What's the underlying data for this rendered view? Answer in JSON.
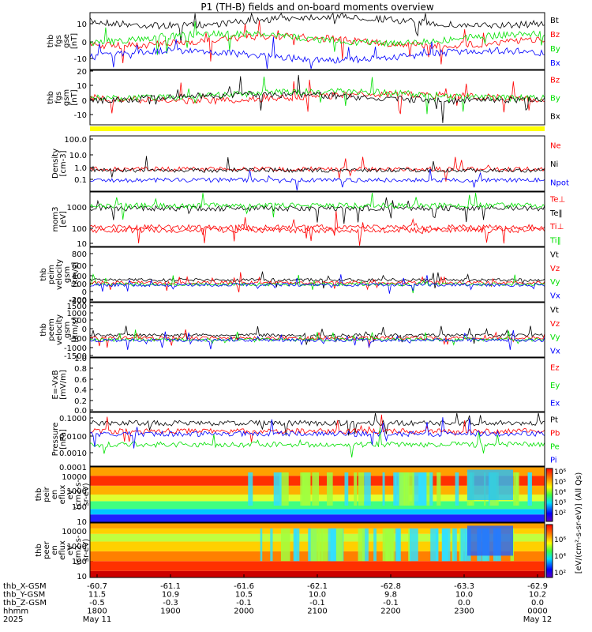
{
  "title": "P1 (TH-B) fields and on-board moments overview",
  "colors": {
    "black": "#000000",
    "red": "#ff0000",
    "green": "#00e000",
    "blue": "#0000ff",
    "yellow": "#ffff00"
  },
  "chart_data": [
    {
      "type": "line",
      "ylabel": [
        "thb",
        "fgs",
        "gse",
        "[nT]"
      ],
      "ylim": [
        -20,
        20
      ],
      "yticks": [
        "10",
        "0",
        "-10"
      ],
      "series": [
        {
          "name": "Bt",
          "color": "black"
        },
        {
          "name": "Bz",
          "color": "red"
        },
        {
          "name": "By",
          "color": "green"
        },
        {
          "name": "Bx",
          "color": "blue"
        }
      ]
    },
    {
      "type": "line",
      "ylabel": [
        "thb",
        "fgs",
        "gsm",
        "[nT]"
      ],
      "ylim": [
        -20,
        20
      ],
      "yticks": [
        "20",
        "10",
        "0",
        "-10"
      ],
      "series": [
        {
          "name": "Bz",
          "color": "red"
        },
        {
          "name": "By",
          "color": "green"
        },
        {
          "name": "Bx",
          "color": "black"
        }
      ]
    },
    {
      "type": "line",
      "ylabel": [
        "Density",
        "[cm-3]"
      ],
      "ylim": [
        0.03,
        150
      ],
      "log": true,
      "yticks": [
        "100.0",
        "10.0",
        "1.0",
        "0.1"
      ],
      "series": [
        {
          "name": "Ne",
          "color": "red"
        },
        {
          "name": "Ni",
          "color": "black"
        },
        {
          "name": "Npot",
          "color": "blue"
        }
      ]
    },
    {
      "type": "line",
      "ylabel": [
        "mom3",
        "[eV]"
      ],
      "ylim": [
        7,
        3000
      ],
      "log": true,
      "yticks": [
        "1000",
        "100",
        "10"
      ],
      "series": [
        {
          "name": "Te⊥",
          "color": "red"
        },
        {
          "name": "Te‖",
          "color": "black"
        },
        {
          "name": "Ti⊥",
          "color": "red"
        },
        {
          "name": "Ti‖",
          "color": "green"
        }
      ]
    },
    {
      "type": "line",
      "ylabel": [
        "thb",
        "peim",
        "velocity",
        "gsm",
        "[km/s]"
      ],
      "ylim": [
        -400,
        900
      ],
      "yticks": [
        "800",
        "600",
        "400",
        "200",
        "0",
        "-200",
        "-400"
      ],
      "series": [
        {
          "name": "Vt",
          "color": "black"
        },
        {
          "name": "Vz",
          "color": "red"
        },
        {
          "name": "Vy",
          "color": "green"
        },
        {
          "name": "Vx",
          "color": "blue"
        }
      ]
    },
    {
      "type": "line",
      "ylabel": [
        "thb",
        "peem",
        "velocity",
        "gsm",
        "[km/s]"
      ],
      "ylim": [
        -1500,
        1500
      ],
      "yticks": [
        "1500",
        "1000",
        "500",
        "0",
        "-500",
        "-1000",
        "-1500"
      ],
      "series": [
        {
          "name": "Vt",
          "color": "black"
        },
        {
          "name": "Vz",
          "color": "red"
        },
        {
          "name": "Vy",
          "color": "green"
        },
        {
          "name": "Vx",
          "color": "blue"
        }
      ]
    },
    {
      "type": "line",
      "ylabel": [
        "E=-VxB",
        "[mV/m]"
      ],
      "ylim": [
        0,
        1
      ],
      "yticks": [
        "1.0",
        "0.8",
        "0.6",
        "0.4",
        "0.2",
        "0.0"
      ],
      "series": [
        {
          "name": "Ez",
          "color": "red"
        },
        {
          "name": "Ey",
          "color": "green"
        },
        {
          "name": "Ex",
          "color": "blue"
        }
      ]
    },
    {
      "type": "line",
      "ylabel": [
        "Pressure",
        "[nPa]"
      ],
      "ylim": [
        0.0001,
        0.15
      ],
      "log": true,
      "yticks": [
        "0.1000",
        "0.0100",
        "0.0010",
        "0.0001"
      ],
      "series": [
        {
          "name": "Pt",
          "color": "black"
        },
        {
          "name": "Pb",
          "color": "red"
        },
        {
          "name": "Pe",
          "color": "green"
        },
        {
          "name": "Pi",
          "color": "blue"
        }
      ]
    },
    {
      "type": "heatmap",
      "ylabel": [
        "thb",
        "peir",
        "en",
        "eflux",
        "eV",
        "(cm2-s-",
        "sr-eV)"
      ],
      "ylim": [
        5,
        20000
      ],
      "log": true,
      "yticks": [
        "10000",
        "1000",
        "100",
        "10"
      ]
    },
    {
      "type": "heatmap",
      "ylabel": [
        "thb",
        "peer",
        "en",
        "eflux",
        "eV",
        "(cm2-s-",
        "sr-eV)"
      ],
      "ylim": [
        5,
        20000
      ],
      "log": true,
      "yticks": [
        "10000",
        "1000",
        "100",
        "10"
      ]
    }
  ],
  "colorbar": {
    "title": "[eV/(cm^2-s(...)]",
    "label": "[eV/(cm²-s-sr-eV)] (All Qs)",
    "ticks": [
      "10⁶",
      "10⁵",
      "10⁴",
      "10³",
      "10²"
    ],
    "ticks2": [
      "10⁶",
      "10⁴",
      "10²"
    ]
  },
  "status_strip": {
    "color": "yellow"
  },
  "xaxis": {
    "rows": [
      {
        "label": "thb_X-GSM",
        "values": [
          "-60.7",
          "-61.1",
          "-61.6",
          "-62.1",
          "-62.8",
          "-63.3",
          "-62.9"
        ]
      },
      {
        "label": "thb_Y-GSM",
        "values": [
          "11.5",
          "10.9",
          "10.5",
          "10.0",
          "9.8",
          "10.0",
          "10.2"
        ]
      },
      {
        "label": "thb_Z-GSM",
        "values": [
          "-0.5",
          "-0.3",
          "-0.1",
          "-0.1",
          "-0.1",
          "0.0",
          "0.0"
        ]
      },
      {
        "label": "hhmm",
        "values": [
          "1800",
          "1900",
          "2000",
          "2100",
          "2200",
          "2300",
          "0000"
        ]
      },
      {
        "label": "2025",
        "values": [
          "May 11",
          "",
          "",
          "",
          "",
          "",
          "May 12"
        ]
      }
    ]
  }
}
